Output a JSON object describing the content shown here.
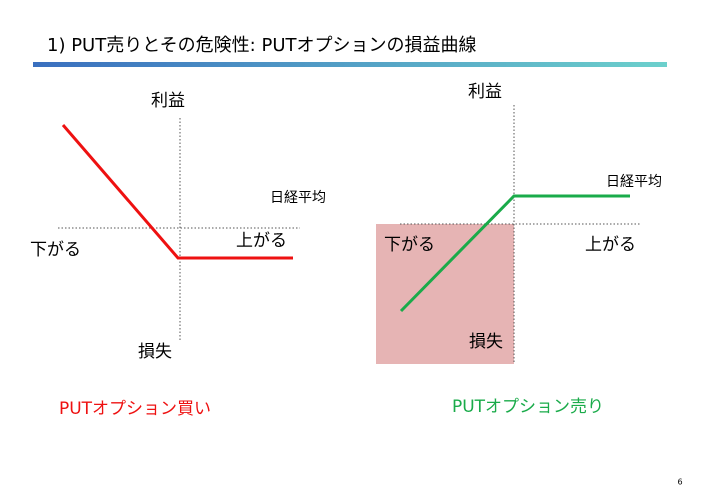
{
  "title": "1) PUT売りとその危険性: PUTオプションの損益曲線",
  "diagrams": [
    {
      "profit": "利益",
      "index": "日経平均",
      "down": "下がる",
      "up": "上がる",
      "loss": "損失",
      "caption": "PUTオプション買い"
    },
    {
      "profit": "利益",
      "index": "日経平均",
      "down": "下がる",
      "up": "上がる",
      "loss": "損失",
      "caption": "PUTオプション売り"
    }
  ],
  "page_number": "6"
}
